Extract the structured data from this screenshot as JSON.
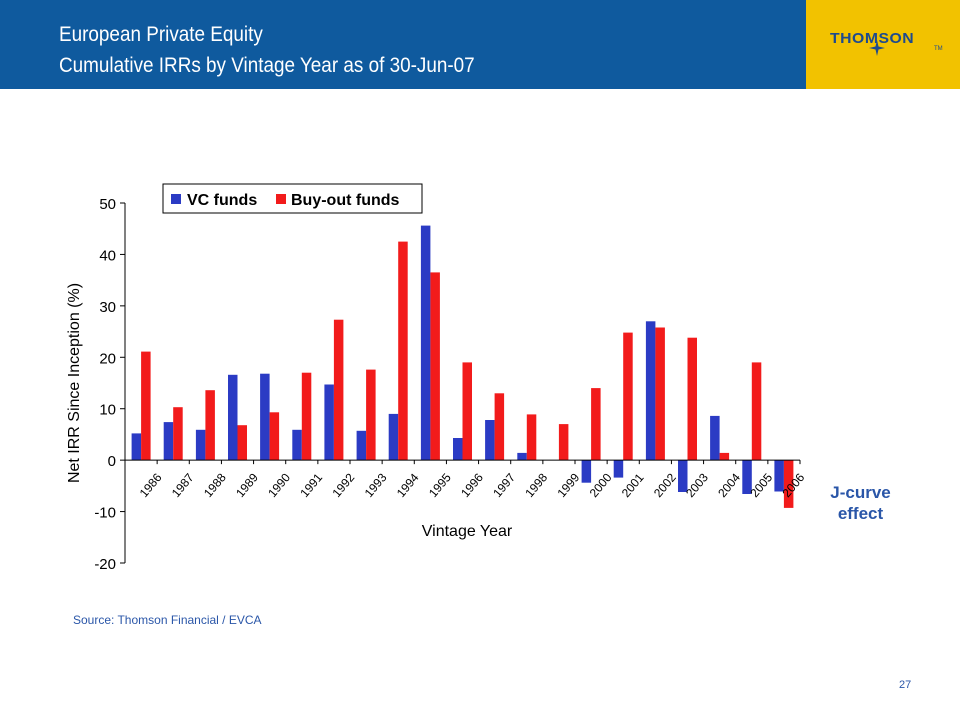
{
  "header": {
    "title_line1": "European Private Equity",
    "title_line2": "Cumulative IRRs by Vintage Year as of 30-Jun-07"
  },
  "logo": {
    "text": "THOMSON",
    "tm": "TM"
  },
  "chart_data": {
    "type": "bar",
    "categories": [
      "1986",
      "1987",
      "1988",
      "1989",
      "1990",
      "1991",
      "1992",
      "1993",
      "1994",
      "1995",
      "1996",
      "1997",
      "1998",
      "1999",
      "2000",
      "2001",
      "2002",
      "2003",
      "2004",
      "2005",
      "2006"
    ],
    "series": [
      {
        "name": "VC funds",
        "color": "#2b3bc4",
        "values": [
          5.2,
          7.4,
          5.9,
          16.6,
          16.8,
          5.9,
          14.7,
          5.7,
          9.0,
          45.6,
          4.3,
          7.8,
          1.4,
          0.0,
          -4.4,
          -3.4,
          27.0,
          -6.2,
          8.6,
          -6.6,
          -6.1
        ]
      },
      {
        "name": "Buy-out funds",
        "color": "#f21b1b",
        "values": [
          21.1,
          10.3,
          13.6,
          6.8,
          9.3,
          17.0,
          27.3,
          17.6,
          42.5,
          36.5,
          19.0,
          13.0,
          8.9,
          7.0,
          14.0,
          24.8,
          25.8,
          23.8,
          1.4,
          19.0,
          -9.3
        ]
      }
    ],
    "xlabel": "Vintage Year",
    "ylabel": "Net IRR Since Inception (%)",
    "ylim": [
      -20,
      50
    ],
    "yticks": [
      -20,
      -10,
      0,
      10,
      20,
      30,
      40,
      50
    ],
    "legend": "top-left",
    "grid": false
  },
  "annotation": {
    "line1": "J-curve",
    "line2": "effect"
  },
  "footer": {
    "source": "Source: Thomson Financial / EVCA",
    "page": "27"
  }
}
